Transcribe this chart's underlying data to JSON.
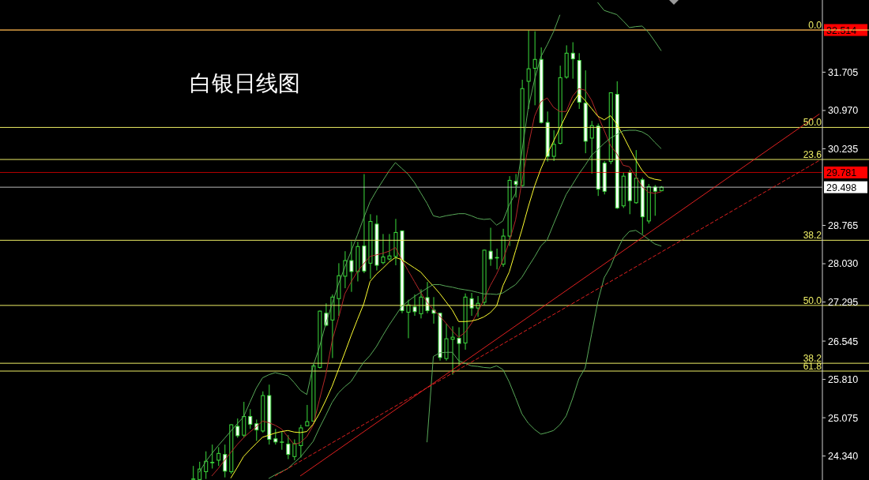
{
  "chart_data": {
    "type": "candlestick",
    "title": "白银日线图",
    "categories": [
      null,
      null,
      null,
      null,
      null,
      null,
      null,
      null,
      null,
      null,
      null,
      null,
      null,
      null,
      null,
      null,
      null,
      null,
      null,
      null,
      null,
      null,
      null,
      null,
      null,
      null,
      null,
      null,
      null,
      null,
      null,
      null,
      null,
      null,
      null,
      null,
      null,
      null,
      null,
      null,
      null,
      null,
      null,
      null,
      null,
      null,
      null,
      null,
      null,
      null,
      null,
      null,
      null,
      null,
      null,
      null,
      null,
      null,
      null,
      null,
      null,
      null,
      null,
      null,
      null,
      null,
      null,
      null,
      null,
      null,
      null,
      null,
      null,
      null,
      null,
      null,
      null,
      null,
      null,
      null,
      null,
      null,
      null,
      null,
      null,
      null,
      null,
      null,
      null,
      null,
      null,
      null,
      null,
      null,
      null,
      null,
      null,
      null,
      null,
      null,
      null,
      null,
      null,
      null,
      null,
      null,
      null,
      null,
      null,
      null,
      null,
      null,
      null,
      null,
      null,
      null,
      null,
      null,
      null,
      null,
      null,
      null,
      null,
      null,
      null,
      null,
      null,
      null,
      null,
      null
    ],
    "ohlc": [
      null,
      null,
      null,
      null,
      null,
      null,
      null,
      null,
      null,
      null,
      null,
      null,
      null,
      null,
      null,
      null,
      null,
      null,
      null,
      null,
      null,
      null,
      null,
      null,
      null,
      null,
      null,
      null,
      null,
      null,
      [
        23.9,
        24.15,
        23.89,
        23.9
      ],
      [
        23.89,
        24.23,
        23.89,
        24.09
      ],
      [
        24.04,
        24.43,
        23.9,
        24.24
      ],
      [
        24.21,
        24.56,
        24.1,
        24.22
      ],
      [
        24.26,
        24.51,
        24.15,
        24.39
      ],
      [
        24.37,
        24.56,
        23.93,
        24.05
      ],
      [
        24.04,
        24.95,
        24.0,
        24.94
      ],
      [
        24.91,
        25.06,
        24.69,
        24.73
      ],
      [
        24.74,
        25.38,
        24.7,
        25.1
      ],
      [
        25.1,
        25.24,
        24.86,
        24.95
      ],
      [
        24.96,
        25.04,
        24.63,
        24.84
      ],
      [
        24.82,
        25.58,
        24.79,
        25.5
      ],
      [
        25.5,
        25.71,
        24.56,
        24.66
      ],
      [
        24.67,
        24.86,
        24.56,
        24.61
      ],
      [
        24.61,
        24.81,
        24.46,
        24.61
      ],
      [
        24.57,
        24.74,
        24.28,
        24.37
      ],
      [
        24.33,
        24.66,
        24.26,
        24.58
      ],
      [
        24.54,
        24.94,
        24.31,
        24.88
      ],
      [
        24.92,
        25.32,
        24.91,
        25.0
      ],
      [
        25.01,
        26.11,
        25.0,
        26.07
      ],
      [
        26.04,
        27.13,
        26.02,
        27.12
      ],
      [
        27.08,
        27.27,
        26.83,
        26.85
      ],
      [
        26.95,
        27.44,
        26.22,
        27.39
      ],
      [
        27.36,
        28.04,
        27.03,
        27.8
      ],
      [
        27.79,
        28.27,
        27.56,
        28.09
      ],
      [
        28.09,
        28.46,
        27.49,
        27.88
      ],
      [
        27.88,
        28.45,
        27.69,
        28.36
      ],
      [
        28.37,
        29.75,
        27.85,
        27.89
      ],
      [
        28.04,
        28.98,
        27.74,
        28.84
      ],
      [
        28.79,
        28.96,
        27.9,
        28.0
      ],
      [
        28.05,
        28.6,
        28.02,
        28.16
      ],
      [
        28.12,
        28.6,
        28.09,
        28.18
      ],
      [
        28.17,
        28.89,
        28.0,
        28.63
      ],
      [
        28.66,
        28.67,
        27.08,
        27.13
      ],
      [
        27.1,
        27.34,
        26.6,
        27.24
      ],
      [
        27.2,
        27.44,
        27.03,
        27.11
      ],
      [
        27.07,
        27.54,
        26.98,
        27.39
      ],
      [
        27.38,
        27.68,
        27.08,
        27.13
      ],
      [
        27.14,
        27.39,
        26.88,
        27.08
      ],
      [
        27.08,
        27.09,
        26.17,
        26.23
      ],
      [
        26.21,
        26.88,
        26.17,
        26.59
      ],
      [
        26.58,
        26.83,
        25.9,
        26.62
      ],
      [
        26.6,
        26.81,
        26.07,
        26.5
      ],
      [
        26.51,
        27.46,
        26.38,
        27.39
      ],
      [
        27.36,
        27.47,
        27.03,
        27.18
      ],
      [
        27.18,
        27.41,
        27.01,
        27.27
      ],
      [
        27.29,
        28.3,
        27.24,
        28.29
      ],
      [
        28.27,
        28.72,
        27.99,
        28.12
      ],
      [
        28.14,
        28.32,
        27.92,
        28.15
      ],
      [
        28.02,
        28.7,
        27.97,
        28.56
      ],
      [
        28.56,
        29.71,
        28.37,
        29.63
      ],
      [
        29.61,
        29.75,
        29.3,
        29.55
      ],
      [
        29.53,
        31.56,
        29.51,
        31.39
      ],
      [
        31.53,
        32.51,
        31.0,
        31.77
      ],
      [
        31.78,
        32.49,
        31.07,
        31.95
      ],
      [
        31.95,
        32.18,
        30.72,
        30.74
      ],
      [
        30.74,
        30.95,
        29.99,
        30.09
      ],
      [
        30.09,
        30.59,
        30.0,
        30.32
      ],
      [
        30.34,
        31.83,
        30.32,
        31.6
      ],
      [
        31.61,
        32.22,
        31.58,
        32.07
      ],
      [
        32.07,
        32.28,
        31.58,
        31.96
      ],
      [
        31.93,
        32.07,
        31.0,
        31.13
      ],
      [
        31.11,
        31.74,
        30.15,
        30.38
      ],
      [
        30.44,
        30.77,
        29.76,
        30.68
      ],
      [
        30.67,
        30.72,
        29.33,
        29.46
      ],
      [
        29.96,
        30.0,
        29.36,
        29.42
      ],
      [
        29.99,
        31.31,
        29.94,
        31.31
      ],
      [
        31.28,
        31.53,
        29.08,
        29.1
      ],
      [
        29.14,
        29.78,
        29.1,
        29.71
      ],
      [
        29.78,
        29.83,
        28.98,
        29.24
      ],
      [
        29.2,
        30.21,
        29.18,
        29.67
      ],
      [
        29.64,
        29.68,
        28.6,
        28.93
      ],
      [
        28.85,
        29.56,
        28.8,
        29.51
      ],
      [
        29.5,
        29.54,
        28.95,
        29.42
      ],
      [
        29.43,
        29.52,
        29.42,
        29.498
      ],
      null,
      null,
      null,
      null,
      null,
      null,
      null,
      null,
      null,
      null,
      null,
      null,
      null,
      null,
      null,
      null,
      null,
      null,
      null,
      null,
      null,
      null,
      null,
      null,
      null
    ],
    "color": "#3cdc3c",
    "colors": [
      null,
      null,
      null,
      null,
      null,
      null,
      null,
      null,
      null,
      null,
      null,
      null,
      null,
      null,
      null,
      null,
      null,
      null,
      null,
      null,
      null,
      null,
      null,
      null,
      null,
      null,
      null,
      null,
      null,
      null,
      "#000000",
      "#000000",
      "#000000",
      "#000000",
      "#000000",
      "#ffffff",
      "#000000",
      "#ffffff",
      "#000000",
      "#ffffff",
      "#ffffff",
      "#000000",
      "#ffffff",
      "#ffffff",
      "#000000",
      "#ffffff",
      "#000000",
      "#000000",
      "#000000",
      "#000000",
      "#000000",
      "#ffffff",
      "#000000",
      "#000000",
      "#000000",
      "#ffffff",
      "#000000",
      "#ffffff",
      "#000000",
      "#ffffff",
      "#000000",
      "#000000",
      "#000000",
      "#ffffff",
      "#000000",
      "#ffffff",
      "#000000",
      "#ffffff",
      "#ffffff",
      "#ffffff",
      "#000000",
      "#000000",
      "#ffffff",
      "#000000",
      "#ffffff",
      "#000000",
      "#000000",
      "#ffffff",
      "#000000",
      "#000000",
      "#000000",
      "#ffffff",
      "#000000",
      "#000000",
      "#000000",
      "#ffffff",
      "#ffffff",
      "#000000",
      "#000000",
      "#000000",
      "#ffffff",
      "#ffffff",
      "#ffffff",
      "#000000",
      "#ffffff",
      "#ffffff",
      "#000000",
      "#ffffff",
      "#000000",
      "#ffffff",
      "#000000",
      "#ffffff",
      "#000000",
      "#ffffff",
      "#000000",
      null,
      null,
      null,
      null,
      null,
      null,
      null,
      null,
      null,
      null,
      null,
      null,
      null,
      null,
      null,
      null,
      null,
      null,
      null,
      null,
      null,
      null,
      null,
      null,
      null
    ],
    "series": [
      {
        "type": "line",
        "color": "#b42828",
        "values": [
          null,
          null,
          null,
          null,
          null,
          null,
          null,
          null,
          null,
          null,
          null,
          null,
          null,
          null,
          null,
          null,
          null,
          null,
          null,
          null,
          null,
          null,
          null,
          null,
          null,
          null,
          null,
          null,
          null,
          null,
          null,
          null,
          null,
          23.96,
          24.1,
          24.26,
          24.41,
          24.56,
          24.69,
          24.8,
          24.9,
          25.01,
          24.98,
          24.93,
          24.86,
          24.71,
          24.56,
          24.6,
          24.71,
          24.93,
          25.42,
          25.9,
          26.55,
          26.98,
          27.45,
          27.68,
          27.88,
          28.03,
          28.17,
          28.2,
          28.23,
          28.27,
          28.34,
          28.11,
          27.9,
          27.69,
          27.48,
          27.29,
          27.15,
          27.03,
          26.89,
          26.74,
          26.62,
          26.71,
          26.88,
          27.1,
          27.34,
          27.61,
          27.83,
          28.1,
          28.45,
          28.87,
          29.61,
          30.28,
          30.86,
          31.14,
          31.21,
          31.03,
          30.95,
          30.95,
          31.24,
          31.39,
          31.36,
          31.17,
          30.87,
          30.59,
          30.3,
          30.14,
          29.92,
          29.89,
          29.71,
          29.51,
          29.4,
          29.38,
          29.41,
          null,
          null,
          null,
          null,
          null,
          null,
          null,
          null,
          null,
          null,
          null,
          null,
          null,
          null,
          null,
          null,
          null,
          null,
          null,
          null,
          null,
          null,
          null,
          null,
          null
        ]
      },
      {
        "type": "line",
        "color": "#ffff30",
        "values": [
          null,
          null,
          null,
          null,
          null,
          null,
          null,
          null,
          null,
          null,
          null,
          null,
          null,
          null,
          null,
          null,
          null,
          null,
          null,
          null,
          null,
          null,
          null,
          null,
          null,
          null,
          null,
          null,
          null,
          null,
          null,
          null,
          null,
          null,
          null,
          null,
          23.92,
          24.12,
          24.33,
          24.46,
          24.58,
          24.7,
          24.74,
          24.78,
          24.81,
          24.83,
          24.8,
          24.79,
          24.81,
          24.95,
          25.16,
          25.41,
          25.68,
          26.0,
          26.32,
          26.65,
          26.96,
          27.26,
          27.69,
          27.83,
          27.94,
          28.06,
          28.15,
          28.11,
          28.03,
          27.95,
          27.87,
          27.73,
          27.6,
          27.46,
          27.3,
          27.14,
          26.92,
          26.92,
          26.93,
          26.96,
          27.01,
          27.09,
          27.22,
          27.61,
          27.87,
          28.28,
          28.68,
          29.12,
          29.52,
          29.85,
          30.13,
          30.38,
          30.63,
          30.88,
          31.11,
          31.29,
          31.16,
          31.01,
          30.86,
          30.79,
          30.87,
          30.71,
          30.49,
          30.25,
          30.02,
          29.82,
          29.69,
          29.65,
          29.63,
          null,
          null,
          null,
          null,
          null,
          null,
          null,
          null,
          null,
          null,
          null,
          null,
          null,
          null,
          null,
          null,
          null,
          null,
          null,
          null,
          null,
          null,
          null,
          null,
          null
        ]
      },
      {
        "type": "line",
        "color": "#58a858",
        "values": [
          null,
          null,
          null,
          null,
          null,
          null,
          null,
          null,
          null,
          null,
          null,
          null,
          null,
          null,
          null,
          null,
          null,
          null,
          null,
          null,
          null,
          null,
          null,
          null,
          null,
          null,
          null,
          null,
          null,
          null,
          null,
          24.03,
          24.23,
          24.39,
          24.54,
          24.68,
          24.82,
          24.96,
          25.09,
          25.37,
          25.64,
          25.84,
          25.9,
          25.94,
          25.91,
          25.88,
          25.75,
          25.6,
          25.52,
          26.07,
          26.43,
          26.88,
          27.26,
          27.64,
          27.96,
          28.27,
          28.58,
          28.91,
          29.22,
          29.43,
          29.62,
          29.81,
          29.97,
          29.86,
          29.75,
          29.59,
          29.39,
          29.19,
          28.95,
          28.92,
          28.95,
          28.97,
          28.99,
          28.99,
          28.95,
          28.9,
          28.88,
          28.89,
          28.77,
          28.85,
          29.16,
          29.38,
          30.18,
          31.02,
          31.56,
          32.0,
          32.23,
          32.48,
          32.8,
          null,
          null,
          null,
          null,
          null,
          33.04,
          32.89,
          32.85,
          32.81,
          32.69,
          32.56,
          32.58,
          32.59,
          32.47,
          32.3,
          32.12,
          null,
          null,
          null,
          null,
          null,
          null,
          null,
          null,
          null,
          null,
          null,
          null,
          null,
          null,
          null,
          null,
          null,
          null,
          null,
          null,
          null,
          null,
          null,
          null,
          null
        ]
      },
      {
        "type": "line",
        "color": "#58a858",
        "values": [
          null,
          null,
          null,
          null,
          null,
          null,
          null,
          null,
          null,
          null,
          null,
          null,
          null,
          null,
          null,
          null,
          null,
          null,
          null,
          null,
          null,
          null,
          null,
          null,
          null,
          null,
          null,
          null,
          null,
          null,
          null,
          null,
          null,
          null,
          null,
          null,
          null,
          null,
          null,
          null,
          null,
          null,
          23.91,
          23.98,
          24.04,
          24.1,
          24.21,
          24.32,
          24.47,
          24.62,
          24.88,
          25.12,
          25.37,
          25.55,
          25.67,
          25.77,
          25.96,
          26.14,
          26.27,
          26.44,
          26.65,
          26.85,
          27.03,
          27.21,
          27.31,
          27.4,
          27.48,
          27.56,
          27.63,
          27.63,
          27.6,
          27.58,
          27.55,
          27.53,
          27.51,
          27.48,
          27.45,
          27.45,
          27.44,
          27.47,
          27.55,
          27.63,
          27.77,
          27.97,
          28.16,
          28.37,
          28.49,
          28.79,
          29.08,
          29.36,
          29.55,
          29.75,
          29.92,
          30.11,
          30.22,
          30.34,
          30.44,
          30.51,
          30.58,
          30.59,
          30.59,
          30.56,
          30.49,
          30.36,
          30.24,
          null,
          null,
          null,
          null,
          null,
          null,
          null,
          null,
          null,
          null,
          null,
          null,
          null,
          null,
          null,
          null,
          null,
          null,
          null,
          null,
          null,
          null,
          null,
          null,
          null
        ]
      },
      {
        "type": "line",
        "color": "#58a858",
        "values": [
          null,
          null,
          null,
          null,
          null,
          null,
          null,
          null,
          null,
          null,
          null,
          null,
          null,
          null,
          null,
          null,
          null,
          null,
          null,
          null,
          null,
          null,
          null,
          null,
          null,
          null,
          null,
          null,
          null,
          null,
          null,
          null,
          null,
          null,
          null,
          null,
          null,
          null,
          null,
          null,
          null,
          null,
          null,
          null,
          null,
          null,
          null,
          null,
          null,
          null,
          null,
          null,
          null,
          null,
          null,
          null,
          null,
          null,
          null,
          null,
          null,
          null,
          null,
          null,
          null,
          null,
          null,
          24.61,
          26.25,
          26.32,
          26.33,
          26.33,
          26.17,
          26.12,
          26.07,
          26.06,
          26.04,
          26.03,
          26.07,
          26.0,
          25.76,
          25.46,
          25.15,
          24.97,
          24.85,
          24.76,
          24.79,
          24.83,
          24.94,
          25.11,
          25.44,
          25.82,
          26.03,
          26.67,
          27.3,
          27.76,
          27.97,
          28.27,
          28.52,
          28.65,
          28.67,
          28.59,
          28.5,
          28.41,
          28.37,
          null,
          null,
          null,
          null,
          null,
          null,
          null,
          null,
          null,
          null,
          null,
          null,
          null,
          null,
          null,
          null,
          null,
          null,
          null,
          null,
          null,
          null,
          null,
          null,
          null
        ]
      },
      {
        "type": "line",
        "color": "#e02020",
        "line_style": "solid",
        "values": [
          null,
          null,
          null,
          null,
          null,
          null,
          null,
          null,
          null,
          null,
          null,
          null,
          null,
          null,
          null,
          null,
          null,
          null,
          null,
          null,
          null,
          null,
          null,
          null,
          null,
          null,
          null,
          null,
          null,
          null,
          null,
          null,
          null,
          null,
          null,
          null,
          null,
          null,
          null,
          null,
          null,
          null,
          null,
          null,
          null,
          null,
          null,
          23.96,
          null,
          null,
          null,
          null,
          null,
          null,
          null,
          null,
          null,
          null,
          null,
          null,
          null,
          null,
          null,
          null,
          null,
          null,
          null,
          null,
          null,
          null,
          null,
          null,
          null,
          null,
          null,
          null,
          null,
          null,
          null,
          null,
          null,
          null,
          null,
          null,
          null,
          null,
          null,
          null,
          null,
          null,
          null,
          null,
          null,
          null,
          null,
          null,
          null,
          null,
          null,
          null,
          null,
          null,
          null,
          null,
          null,
          null,
          null,
          null,
          null,
          null,
          null,
          null,
          null,
          null,
          null,
          null,
          null,
          null,
          null,
          null,
          null,
          null,
          null,
          null,
          null,
          null,
          null,
          null,
          null,
          30.9
        ]
      },
      {
        "type": "line",
        "color": "#e02020",
        "line_style": "dashed",
        "values": [
          null,
          null,
          null,
          null,
          null,
          null,
          null,
          null,
          null,
          null,
          null,
          null,
          null,
          null,
          null,
          null,
          null,
          null,
          null,
          null,
          null,
          null,
          null,
          null,
          null,
          null,
          null,
          null,
          null,
          null,
          null,
          null,
          null,
          null,
          null,
          null,
          null,
          null,
          null,
          null,
          null,
          null,
          null,
          23.96,
          null,
          null,
          null,
          null,
          null,
          null,
          null,
          null,
          null,
          null,
          null,
          null,
          null,
          null,
          null,
          null,
          null,
          null,
          null,
          null,
          null,
          null,
          null,
          null,
          null,
          null,
          null,
          null,
          null,
          null,
          null,
          null,
          null,
          null,
          null,
          null,
          null,
          null,
          null,
          null,
          null,
          null,
          null,
          null,
          null,
          null,
          null,
          null,
          null,
          null,
          null,
          null,
          null,
          null,
          null,
          null,
          null,
          null,
          null,
          null,
          null,
          null,
          null,
          null,
          null,
          null,
          null,
          null,
          null,
          null,
          null,
          null,
          null,
          null,
          null,
          null,
          null,
          null,
          null,
          null,
          null,
          null,
          null,
          null,
          null,
          30.01
        ]
      }
    ],
    "ylim": [
      23.88,
      33.09
    ],
    "yticks": [
      {
        "value": 24.34,
        "label": "24.340"
      },
      25.075,
      {
        "value": 25.81,
        "label": "25.810"
      },
      26.545,
      27.295,
      {
        "value": 28.03,
        "label": "28.030"
      },
      28.765,
      30.235,
      {
        "value": 30.97,
        "label": "30.970"
      },
      31.705
    ],
    "tick_labels": "y",
    "ref_lines": [
      {
        "axis": "y",
        "value": 32.514,
        "label": "32.514",
        "color": "#ff0000"
      },
      {
        "axis": "y",
        "value": 29.781,
        "label": "29.781",
        "color": "#ff0000"
      },
      {
        "axis": "y",
        "value": 29.498,
        "label": "29.498",
        "color": "#ffffff"
      },
      {
        "axis": "y",
        "value": 32.514,
        "color": "#eeee66"
      },
      {
        "axis": "y",
        "value": 30.645,
        "color": "#eeee66"
      },
      {
        "axis": "y",
        "value": 30.03,
        "color": "#eeee66"
      },
      {
        "axis": "y",
        "value": 28.48,
        "color": "#eeee66"
      },
      {
        "axis": "y",
        "value": 27.23,
        "color": "#eeee66"
      },
      {
        "axis": "y",
        "value": 26.12,
        "color": "#eeee66"
      },
      {
        "axis": "y",
        "value": 25.97,
        "color": "#eeee66"
      }
    ],
    "annotations": [
      {
        "text": "0.0",
        "y": 32.514
      },
      {
        "text": "50.0",
        "y": 30.645
      },
      {
        "text": "23.6",
        "y": 30.03
      },
      {
        "text": "38.2",
        "y": 28.48
      },
      {
        "text": "50.0",
        "y": 27.23
      },
      {
        "text": "38.2",
        "y": 26.12
      },
      {
        "text": "61.8",
        "y": 25.97
      }
    ]
  }
}
